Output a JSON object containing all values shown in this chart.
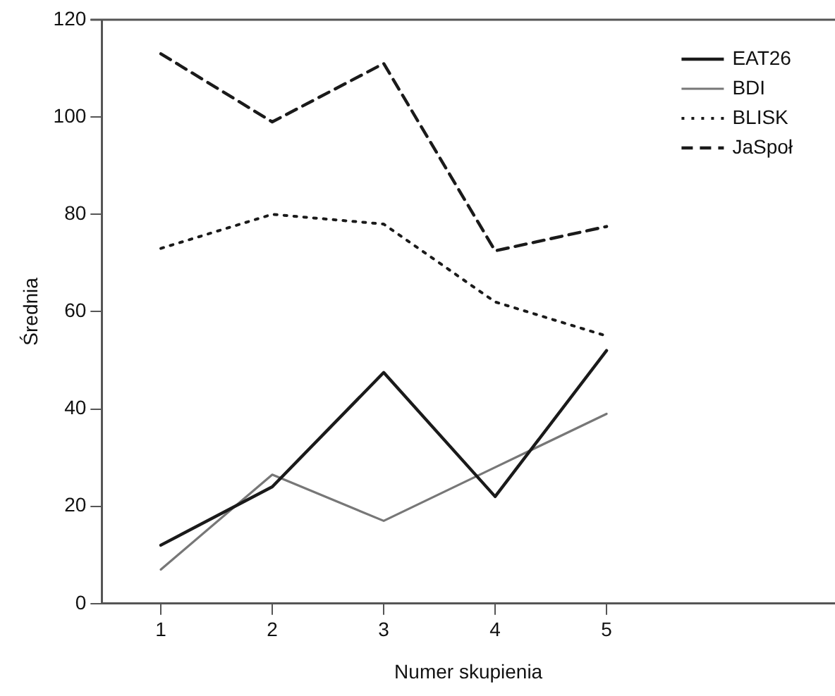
{
  "chart_data": {
    "type": "line",
    "xlabel": "Numer skupienia",
    "ylabel": "Średnia",
    "x": [
      1,
      2,
      3,
      4,
      5
    ],
    "xlim": [
      0.47,
      7.05
    ],
    "xticks": [
      1,
      2,
      3,
      4,
      5
    ],
    "ylim": [
      0,
      120
    ],
    "yticks": [
      0,
      20,
      40,
      60,
      80,
      100,
      120
    ],
    "grid": false,
    "legend": "top right",
    "marker": "none",
    "series": [
      {
        "name": "EAT26",
        "color": "#1a1a1a",
        "line_style": "solid",
        "values": [
          12,
          24,
          47.5,
          22,
          52
        ]
      },
      {
        "name": "BDI",
        "color": "#777777",
        "line_style": "solid",
        "values": [
          7,
          26.5,
          17,
          28,
          39
        ]
      },
      {
        "name": "BLISK",
        "color": "#1a1a1a",
        "line_style": "dotted",
        "values": [
          73,
          80,
          78,
          62,
          55
        ]
      },
      {
        "name": "JaSpoł",
        "color": "#1a1a1a",
        "line_style": "dashed",
        "values": [
          113,
          99,
          111,
          72.5,
          77.5
        ]
      }
    ]
  }
}
